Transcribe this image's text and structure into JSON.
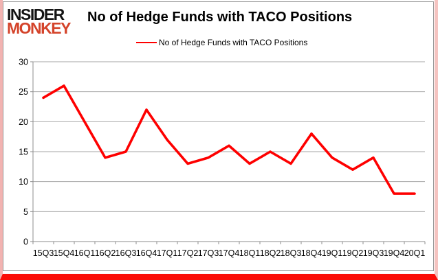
{
  "branding": {
    "line1": "INSIDER",
    "line2": "MONKEY"
  },
  "header": {
    "title": "No of Hedge Funds with TACO Positions"
  },
  "legend": {
    "label": "No of Hedge Funds with TACO Positions"
  },
  "colors": {
    "series": "#fe0000",
    "grid": "#a6a6a6",
    "axis": "#8c8c8c",
    "text": "#000000",
    "logo_accent": "#d4432a",
    "frame_gray": "#969696",
    "border_pink": "#f2b3b1",
    "border_red": "#fb0d07"
  },
  "chart_data": {
    "type": "line",
    "title": "No of Hedge Funds with TACO Positions",
    "xlabel": "",
    "ylabel": "",
    "categories": [
      "15Q3",
      "15Q4",
      "16Q1",
      "16Q2",
      "16Q3",
      "16Q4",
      "17Q1",
      "17Q2",
      "17Q3",
      "17Q4",
      "18Q1",
      "18Q2",
      "18Q3",
      "18Q4",
      "19Q1",
      "19Q2",
      "19Q3",
      "19Q4",
      "20Q1"
    ],
    "series": [
      {
        "name": "No of Hedge Funds with TACO Positions",
        "values": [
          24,
          26,
          20,
          14,
          15,
          22,
          17,
          13,
          14,
          16,
          13,
          15,
          13,
          18,
          14,
          12,
          14,
          8,
          8
        ]
      }
    ],
    "ylim": [
      0,
      30
    ],
    "ytick_interval": 5,
    "yticks": [
      0,
      5,
      10,
      15,
      20,
      25,
      30
    ],
    "grid": true,
    "legend_position": "top-center",
    "marker": "none"
  }
}
